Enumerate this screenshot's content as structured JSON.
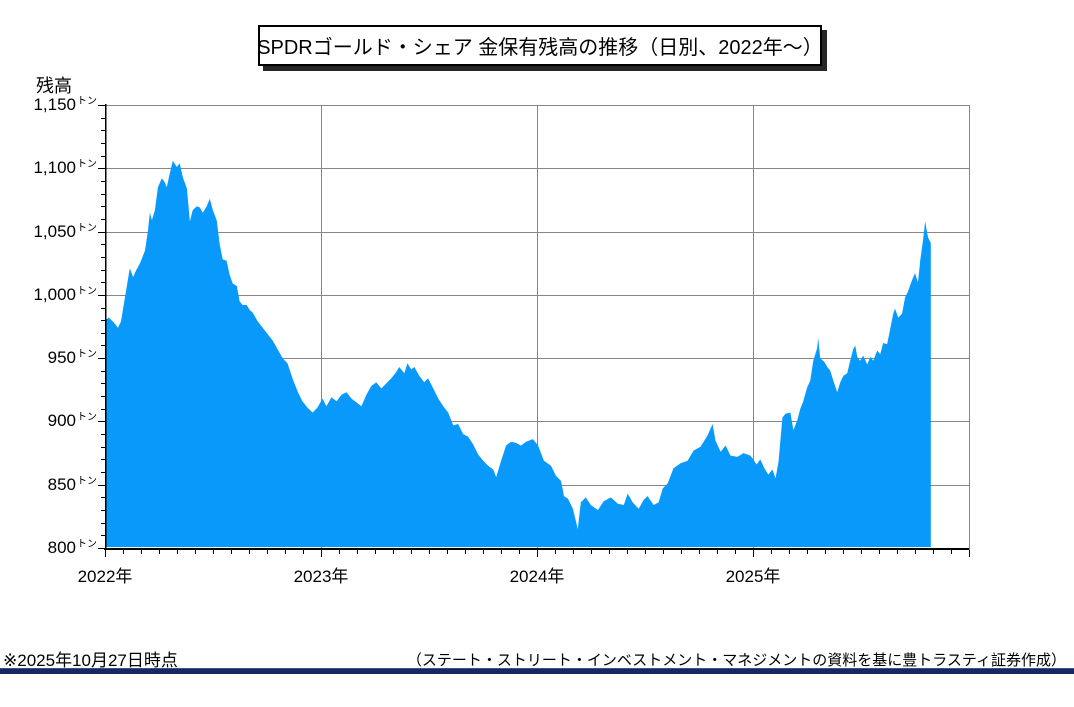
{
  "title": {
    "text": "SPDRゴールド・シェア 金保有残高の推移（日別、2022年～）"
  },
  "footer": {
    "note_left": "※2025年10月27日時点",
    "credit_right": "（ステート・ストリート・インベストメント・マネジメントの資料を基に豊トラスティ証券作成）",
    "divider_color": "#16295F"
  },
  "chart_data": {
    "type": "area",
    "title": "SPDRゴールド・シェア 金保有残高の推移（日別、2022年～）",
    "ylabel": "残高",
    "unit": "トン",
    "ylim": [
      800,
      1150
    ],
    "ytick_step": 50,
    "ytick_minor_step": 10,
    "ytick_labels": [
      "1,150",
      "1,100",
      "1,050",
      "1,000",
      "950",
      "900",
      "850",
      "800"
    ],
    "x_year_labels": [
      "2022年",
      "2023年",
      "2024年",
      "2025年"
    ],
    "x_span_years": 4,
    "xtick_minor_per_year": 12,
    "grid_on": true,
    "grid_color": "#878787",
    "axis_color": "#000000",
    "legend": "none",
    "series": [
      {
        "name": "SPDRゴールド・シェア 金保有残高",
        "fill_color": "#0999FA",
        "x_unit": "years_since_2022-01-01",
        "y_unit": "トン",
        "points": [
          [
            0.0,
            980
          ],
          [
            0.018,
            982
          ],
          [
            0.042,
            978
          ],
          [
            0.06,
            974
          ],
          [
            0.074,
            979
          ],
          [
            0.097,
            1003
          ],
          [
            0.115,
            1021
          ],
          [
            0.13,
            1014
          ],
          [
            0.143,
            1019
          ],
          [
            0.162,
            1025
          ],
          [
            0.185,
            1035
          ],
          [
            0.199,
            1051
          ],
          [
            0.208,
            1065
          ],
          [
            0.217,
            1059
          ],
          [
            0.231,
            1067
          ],
          [
            0.245,
            1085
          ],
          [
            0.263,
            1092
          ],
          [
            0.277,
            1089
          ],
          [
            0.286,
            1085
          ],
          [
            0.3,
            1096
          ],
          [
            0.314,
            1106
          ],
          [
            0.333,
            1101
          ],
          [
            0.346,
            1104
          ],
          [
            0.36,
            1093
          ],
          [
            0.379,
            1084
          ],
          [
            0.393,
            1058
          ],
          [
            0.406,
            1067
          ],
          [
            0.425,
            1070
          ],
          [
            0.439,
            1069
          ],
          [
            0.453,
            1065
          ],
          [
            0.471,
            1070
          ],
          [
            0.485,
            1076
          ],
          [
            0.499,
            1067
          ],
          [
            0.517,
            1059
          ],
          [
            0.531,
            1040
          ],
          [
            0.545,
            1028
          ],
          [
            0.563,
            1027
          ],
          [
            0.577,
            1016
          ],
          [
            0.591,
            1009
          ],
          [
            0.61,
            1007
          ],
          [
            0.623,
            995
          ],
          [
            0.637,
            992
          ],
          [
            0.656,
            992
          ],
          [
            0.67,
            988
          ],
          [
            0.684,
            986
          ],
          [
            0.707,
            979
          ],
          [
            0.73,
            974
          ],
          [
            0.753,
            969
          ],
          [
            0.776,
            964
          ],
          [
            0.799,
            957
          ],
          [
            0.822,
            950
          ],
          [
            0.845,
            946
          ],
          [
            0.868,
            934
          ],
          [
            0.891,
            924
          ],
          [
            0.914,
            916
          ],
          [
            0.937,
            911
          ],
          [
            0.961,
            907
          ],
          [
            0.984,
            911
          ],
          [
            1.007,
            918
          ],
          [
            1.025,
            912
          ],
          [
            1.048,
            919
          ],
          [
            1.072,
            916
          ],
          [
            1.095,
            921
          ],
          [
            1.118,
            923
          ],
          [
            1.141,
            918
          ],
          [
            1.164,
            915
          ],
          [
            1.187,
            912
          ],
          [
            1.21,
            921
          ],
          [
            1.233,
            928
          ],
          [
            1.256,
            931
          ],
          [
            1.279,
            926
          ],
          [
            1.302,
            930
          ],
          [
            1.325,
            934
          ],
          [
            1.348,
            939
          ],
          [
            1.362,
            943
          ],
          [
            1.386,
            938
          ],
          [
            1.4,
            946
          ],
          [
            1.418,
            941
          ],
          [
            1.432,
            943
          ],
          [
            1.455,
            936
          ],
          [
            1.478,
            931
          ],
          [
            1.496,
            934
          ],
          [
            1.52,
            926
          ],
          [
            1.543,
            918
          ],
          [
            1.566,
            912
          ],
          [
            1.589,
            907
          ],
          [
            1.612,
            897
          ],
          [
            1.635,
            898
          ],
          [
            1.658,
            890
          ],
          [
            1.681,
            888
          ],
          [
            1.704,
            882
          ],
          [
            1.727,
            874
          ],
          [
            1.751,
            869
          ],
          [
            1.774,
            865
          ],
          [
            1.797,
            862
          ],
          [
            1.811,
            856
          ],
          [
            1.834,
            869
          ],
          [
            1.857,
            881
          ],
          [
            1.88,
            884
          ],
          [
            1.903,
            883
          ],
          [
            1.926,
            881
          ],
          [
            1.949,
            884
          ],
          [
            1.981,
            886
          ],
          [
            2.005,
            881
          ],
          [
            2.032,
            869
          ],
          [
            2.065,
            865
          ],
          [
            2.088,
            857
          ],
          [
            2.111,
            853
          ],
          [
            2.125,
            841
          ],
          [
            2.143,
            839
          ],
          [
            2.166,
            831
          ],
          [
            2.189,
            815
          ],
          [
            2.203,
            836
          ],
          [
            2.226,
            840
          ],
          [
            2.249,
            834
          ],
          [
            2.282,
            830
          ],
          [
            2.309,
            837
          ],
          [
            2.342,
            840
          ],
          [
            2.374,
            835
          ],
          [
            2.402,
            834
          ],
          [
            2.42,
            843
          ],
          [
            2.443,
            836
          ],
          [
            2.471,
            831
          ],
          [
            2.494,
            838
          ],
          [
            2.512,
            841
          ],
          [
            2.54,
            834
          ],
          [
            2.563,
            836
          ],
          [
            2.582,
            847
          ],
          [
            2.605,
            851
          ],
          [
            2.632,
            863
          ],
          [
            2.665,
            867
          ],
          [
            2.697,
            869
          ],
          [
            2.725,
            877
          ],
          [
            2.757,
            880
          ],
          [
            2.79,
            889
          ],
          [
            2.813,
            898
          ],
          [
            2.826,
            885
          ],
          [
            2.85,
            876
          ],
          [
            2.873,
            881
          ],
          [
            2.896,
            873
          ],
          [
            2.928,
            872
          ],
          [
            2.956,
            875
          ],
          [
            2.988,
            873
          ],
          [
            3.002,
            870
          ],
          [
            3.016,
            866
          ],
          [
            3.034,
            870
          ],
          [
            3.053,
            863
          ],
          [
            3.071,
            858
          ],
          [
            3.09,
            862
          ],
          [
            3.104,
            855
          ],
          [
            3.118,
            868
          ],
          [
            3.136,
            903
          ],
          [
            3.15,
            906
          ],
          [
            3.173,
            907
          ],
          [
            3.187,
            893
          ],
          [
            3.205,
            901
          ],
          [
            3.219,
            910
          ],
          [
            3.233,
            916
          ],
          [
            3.251,
            927
          ],
          [
            3.265,
            932
          ],
          [
            3.279,
            948
          ],
          [
            3.297,
            958
          ],
          [
            3.302,
            966
          ],
          [
            3.311,
            950
          ],
          [
            3.33,
            947
          ],
          [
            3.344,
            943
          ],
          [
            3.358,
            940
          ],
          [
            3.372,
            932
          ],
          [
            3.39,
            923
          ],
          [
            3.404,
            931
          ],
          [
            3.418,
            936
          ],
          [
            3.436,
            938
          ],
          [
            3.45,
            948
          ],
          [
            3.464,
            957
          ],
          [
            3.473,
            960
          ],
          [
            3.483,
            951
          ],
          [
            3.496,
            948
          ],
          [
            3.51,
            952
          ],
          [
            3.529,
            945
          ],
          [
            3.543,
            951
          ],
          [
            3.557,
            948
          ],
          [
            3.575,
            956
          ],
          [
            3.589,
            953
          ],
          [
            3.603,
            962
          ],
          [
            3.621,
            961
          ],
          [
            3.635,
            973
          ],
          [
            3.649,
            985
          ],
          [
            3.658,
            989
          ],
          [
            3.672,
            982
          ],
          [
            3.69,
            985
          ],
          [
            3.704,
            998
          ],
          [
            3.718,
            1003
          ],
          [
            3.737,
            1012
          ],
          [
            3.75,
            1017
          ],
          [
            3.764,
            1010
          ],
          [
            3.774,
            1027
          ],
          [
            3.787,
            1043
          ],
          [
            3.797,
            1058
          ],
          [
            3.806,
            1049
          ],
          [
            3.811,
            1045
          ],
          [
            3.823,
            1041
          ]
        ]
      }
    ]
  }
}
